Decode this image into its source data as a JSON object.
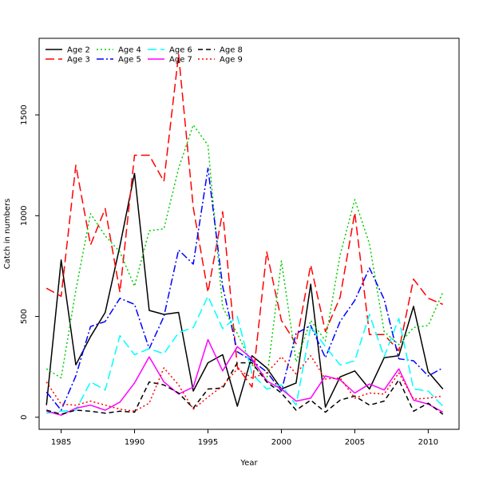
{
  "chart_data": {
    "type": "line",
    "title": "",
    "xlabel": "Year",
    "ylabel": "Catch in numbers",
    "xlim": [
      1983.5,
      2012.1
    ],
    "ylim": [
      -60,
      1880
    ],
    "x_ticks": [
      1985,
      1990,
      1995,
      2000,
      2005,
      2010
    ],
    "y_ticks": [
      0,
      500,
      1000,
      1500
    ],
    "grid": false,
    "legend_position": "top-left",
    "x": [
      1984,
      1985,
      1986,
      1987,
      1988,
      1989,
      1990,
      1991,
      1992,
      1993,
      1994,
      1995,
      1996,
      1997,
      1998,
      1999,
      2000,
      2001,
      2002,
      2003,
      2004,
      2005,
      2006,
      2007,
      2008,
      2009,
      2010,
      2011
    ],
    "series": [
      {
        "name": "Age 2",
        "color": "#000000",
        "dash": "solid",
        "values": [
          60,
          780,
          260,
          400,
          520,
          850,
          1210,
          530,
          510,
          520,
          130,
          270,
          310,
          55,
          305,
          245,
          140,
          170,
          660,
          50,
          200,
          230,
          140,
          295,
          305,
          550,
          225,
          140
        ]
      },
      {
        "name": "Age 3",
        "color": "#ff0000",
        "dash": "longdash",
        "values": [
          640,
          600,
          1250,
          855,
          1035,
          620,
          1300,
          1300,
          1170,
          1800,
          1040,
          620,
          1020,
          250,
          150,
          820,
          480,
          365,
          755,
          425,
          595,
          1015,
          410,
          410,
          330,
          685,
          590,
          560
        ]
      },
      {
        "name": "Age 4",
        "color": "#00cd00",
        "dash": "dotted",
        "values": [
          240,
          195,
          630,
          1010,
          900,
          820,
          650,
          925,
          935,
          1235,
          1450,
          1350,
          545,
          415,
          260,
          185,
          775,
          275,
          480,
          380,
          805,
          1080,
          860,
          425,
          360,
          445,
          455,
          620
        ]
      },
      {
        "name": "Age 5",
        "color": "#0000ff",
        "dash": "dotdash",
        "values": [
          125,
          35,
          205,
          450,
          475,
          590,
          560,
          340,
          500,
          830,
          760,
          1235,
          650,
          325,
          280,
          225,
          130,
          415,
          455,
          295,
          475,
          580,
          740,
          585,
          290,
          280,
          205,
          245
        ]
      },
      {
        "name": "Age 6",
        "color": "#00ffff",
        "dash": "longdash",
        "values": [
          20,
          30,
          35,
          175,
          135,
          405,
          310,
          340,
          315,
          420,
          445,
          600,
          440,
          500,
          215,
          140,
          160,
          60,
          450,
          350,
          260,
          280,
          510,
          300,
          490,
          140,
          130,
          55
        ]
      },
      {
        "name": "Age 7",
        "color": "#ff00ff",
        "dash": "solid",
        "values": [
          30,
          10,
          45,
          60,
          35,
          75,
          170,
          300,
          175,
          115,
          150,
          385,
          230,
          350,
          290,
          180,
          140,
          80,
          95,
          205,
          185,
          120,
          165,
          135,
          240,
          85,
          65,
          25
        ]
      },
      {
        "name": "Age 8",
        "color": "#000000",
        "dash": "dashed",
        "values": [
          35,
          15,
          35,
          30,
          20,
          30,
          25,
          175,
          160,
          120,
          45,
          140,
          145,
          270,
          270,
          175,
          120,
          35,
          85,
          25,
          85,
          105,
          60,
          80,
          185,
          30,
          70,
          15
        ]
      },
      {
        "name": "Age 9",
        "color": "#ff0000",
        "dash": "dotted",
        "values": [
          175,
          65,
          60,
          80,
          60,
          40,
          30,
          70,
          245,
          160,
          40,
          100,
          155,
          240,
          195,
          220,
          300,
          215,
          305,
          190,
          195,
          95,
          120,
          115,
          220,
          90,
          95,
          105
        ]
      }
    ]
  }
}
